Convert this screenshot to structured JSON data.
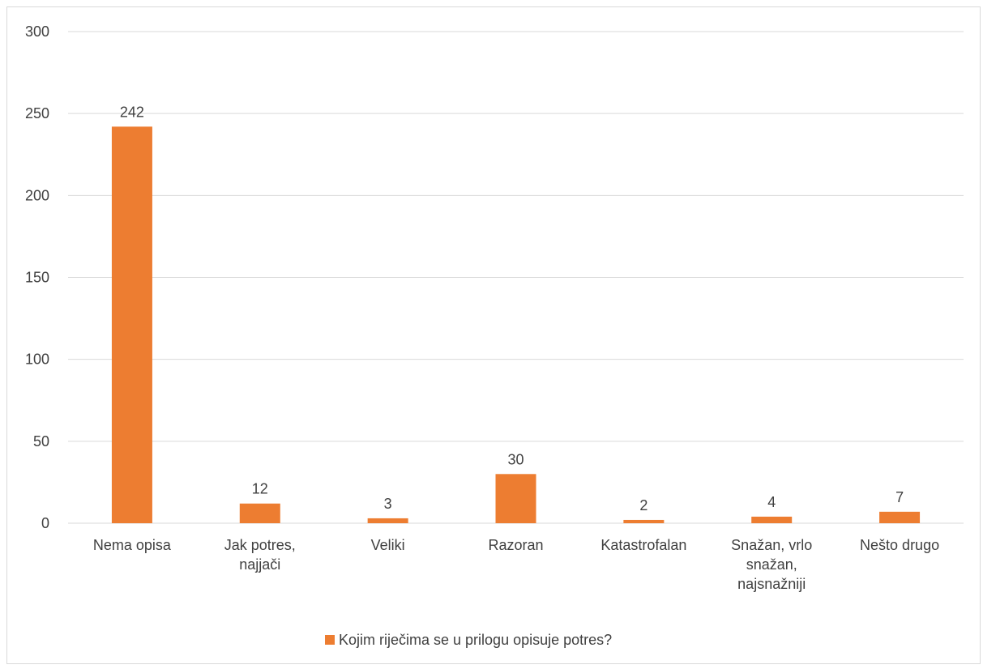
{
  "chart_data": {
    "type": "bar",
    "categories": [
      [
        "Nema opisa"
      ],
      [
        "Jak potres,",
        "najjači"
      ],
      [
        "Veliki"
      ],
      [
        "Razoran"
      ],
      [
        "Katastrofalan"
      ],
      [
        "Snažan, vrlo",
        "snažan,",
        "najsnažniji"
      ],
      [
        "Nešto drugo"
      ]
    ],
    "series": [
      {
        "name": "Kojim riječima se u prilogu opisuje potres?",
        "values": [
          242,
          12,
          3,
          30,
          2,
          4,
          7
        ],
        "color": "#ED7D31"
      }
    ],
    "ylim": [
      0,
      300
    ],
    "yticks": [
      0,
      50,
      100,
      150,
      200,
      250,
      300
    ],
    "grid": true,
    "gridColor": "#d9d9d9",
    "legend_position": "bottom",
    "data_labels": true
  }
}
